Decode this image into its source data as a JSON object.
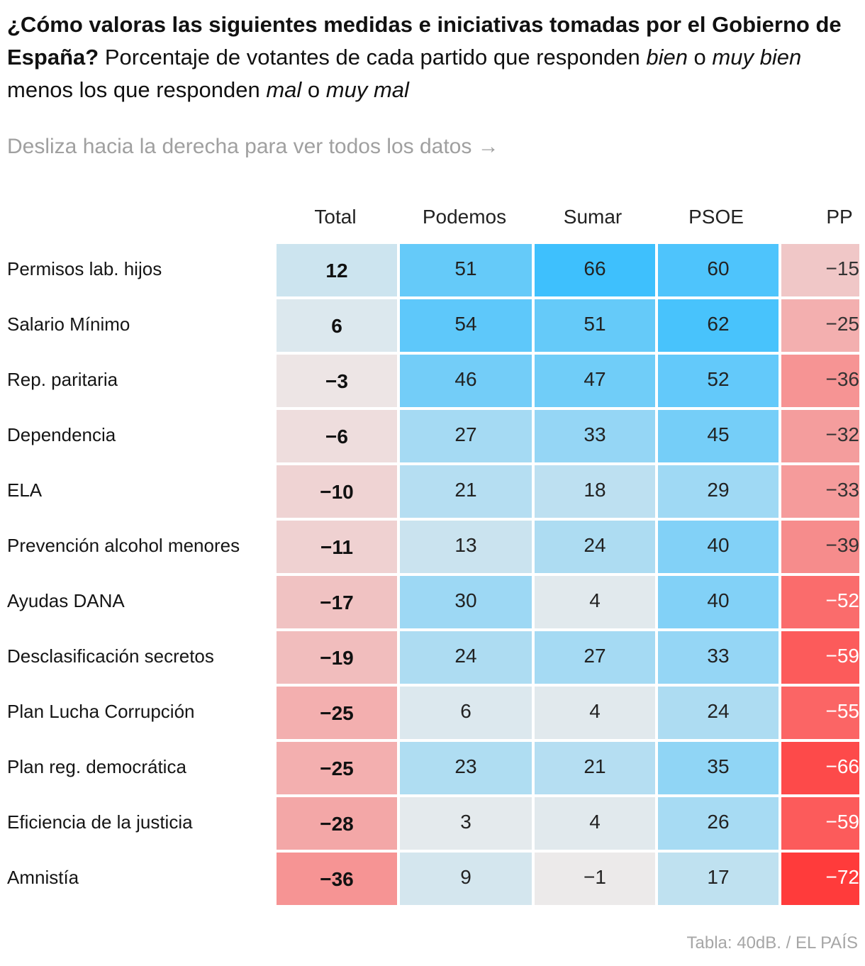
{
  "title": {
    "bold": "¿Cómo valoras las siguientes medidas e iniciativas tomadas por el Gobierno de España?",
    "part1": " Porcentaje de votantes de cada partido que responden ",
    "italic1": "bien",
    "part2": " o ",
    "italic2": "muy bien",
    "part3": " menos los que responden ",
    "italic3": "mal",
    "part4": " o ",
    "italic4": "muy mal"
  },
  "hint": "Desliza hacia la derecha para ver todos los datos →",
  "source": "Tabla: 40dB. / EL PAÍS",
  "chart_data": {
    "type": "table",
    "title": "¿Cómo valoras las siguientes medidas e iniciativas tomadas por el Gobierno de España?",
    "columns": [
      "Total",
      "Podemos",
      "Sumar",
      "PSOE",
      "PP"
    ],
    "rows": [
      {
        "label": "Permisos lab. hijos",
        "values": [
          12,
          51,
          66,
          60,
          -15
        ]
      },
      {
        "label": "Salario Mínimo",
        "values": [
          6,
          54,
          51,
          62,
          -25
        ]
      },
      {
        "label": "Rep. paritaria",
        "values": [
          -3,
          46,
          47,
          52,
          -36
        ]
      },
      {
        "label": "Dependencia",
        "values": [
          -6,
          27,
          33,
          45,
          -32
        ]
      },
      {
        "label": "ELA",
        "values": [
          -10,
          21,
          18,
          29,
          -33
        ]
      },
      {
        "label": "Prevención alcohol menores",
        "values": [
          -11,
          13,
          24,
          40,
          -39
        ]
      },
      {
        "label": "Ayudas DANA",
        "values": [
          -17,
          30,
          4,
          40,
          -52
        ]
      },
      {
        "label": "Desclasificación secretos",
        "values": [
          -19,
          24,
          27,
          33,
          -59
        ]
      },
      {
        "label": "Plan Lucha Corrupción",
        "values": [
          -25,
          6,
          4,
          24,
          -55
        ]
      },
      {
        "label": "Plan reg. democrática",
        "values": [
          -25,
          23,
          21,
          35,
          -66
        ]
      },
      {
        "label": "Eficiencia de la justicia",
        "values": [
          -28,
          3,
          4,
          26,
          -59
        ]
      },
      {
        "label": "Amnistía",
        "values": [
          -36,
          9,
          -1,
          17,
          -72
        ]
      }
    ],
    "color_scale": {
      "negative": "#ff3b3b",
      "positive": "#2ebcff",
      "neutral": "#ececec",
      "max_abs": 72
    }
  }
}
